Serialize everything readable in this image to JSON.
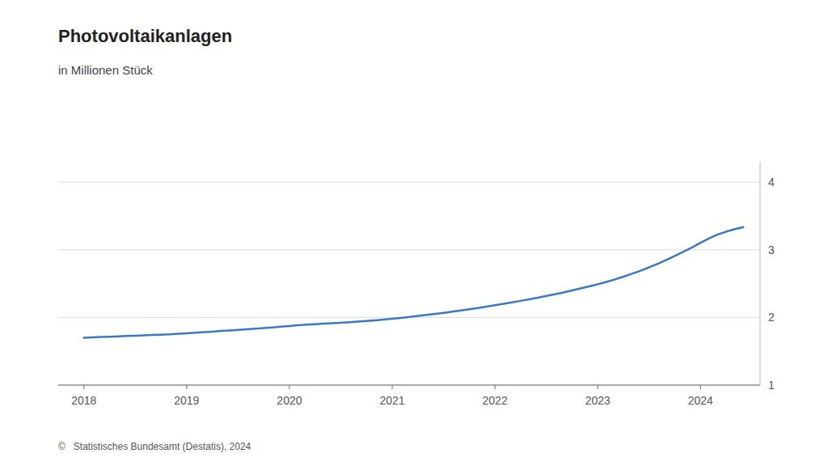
{
  "chart_data": {
    "type": "line",
    "title": "Photovoltaikanlagen",
    "subtitle": "in Millionen Stück",
    "footer": "©   Statistisches Bundesamt (Destatis), 2024",
    "color": "#3b78c3",
    "x": [
      2018.0,
      2018.083,
      2018.167,
      2018.25,
      2018.333,
      2018.417,
      2018.5,
      2018.583,
      2018.667,
      2018.75,
      2018.833,
      2018.917,
      2019.0,
      2019.083,
      2019.167,
      2019.25,
      2019.333,
      2019.417,
      2019.5,
      2019.583,
      2019.667,
      2019.75,
      2019.833,
      2019.917,
      2020.0,
      2020.083,
      2020.167,
      2020.25,
      2020.333,
      2020.417,
      2020.5,
      2020.583,
      2020.667,
      2020.75,
      2020.833,
      2020.917,
      2021.0,
      2021.083,
      2021.167,
      2021.25,
      2021.333,
      2021.417,
      2021.5,
      2021.583,
      2021.667,
      2021.75,
      2021.833,
      2021.917,
      2022.0,
      2022.083,
      2022.167,
      2022.25,
      2022.333,
      2022.417,
      2022.5,
      2022.583,
      2022.667,
      2022.75,
      2022.833,
      2022.917,
      2023.0,
      2023.083,
      2023.167,
      2023.25,
      2023.333,
      2023.417,
      2023.5,
      2023.583,
      2023.667,
      2023.75,
      2023.833,
      2023.917,
      2024.0,
      2024.083,
      2024.167,
      2024.25,
      2024.333,
      2024.417
    ],
    "values": [
      1.7,
      1.705,
      1.71,
      1.715,
      1.72,
      1.725,
      1.73,
      1.735,
      1.74,
      1.745,
      1.75,
      1.758,
      1.766,
      1.774,
      1.782,
      1.79,
      1.8,
      1.808,
      1.816,
      1.824,
      1.833,
      1.843,
      1.853,
      1.863,
      1.874,
      1.884,
      1.893,
      1.901,
      1.908,
      1.915,
      1.922,
      1.93,
      1.938,
      1.947,
      1.957,
      1.968,
      1.98,
      1.993,
      2.007,
      2.021,
      2.036,
      2.052,
      2.068,
      2.085,
      2.103,
      2.121,
      2.14,
      2.16,
      2.18,
      2.201,
      2.222,
      2.245,
      2.268,
      2.292,
      2.317,
      2.343,
      2.37,
      2.398,
      2.428,
      2.458,
      2.49,
      2.525,
      2.562,
      2.602,
      2.645,
      2.691,
      2.74,
      2.793,
      2.849,
      2.908,
      2.97,
      3.035,
      3.103,
      3.168,
      3.225,
      3.268,
      3.305,
      3.335
    ],
    "xlim": [
      2017.75,
      2024.58
    ],
    "xticks": [
      2018,
      2019,
      2020,
      2021,
      2022,
      2023,
      2024
    ],
    "ylim": [
      1,
      4.3
    ],
    "yticks": [
      1,
      2,
      3,
      4
    ],
    "grid": true
  }
}
